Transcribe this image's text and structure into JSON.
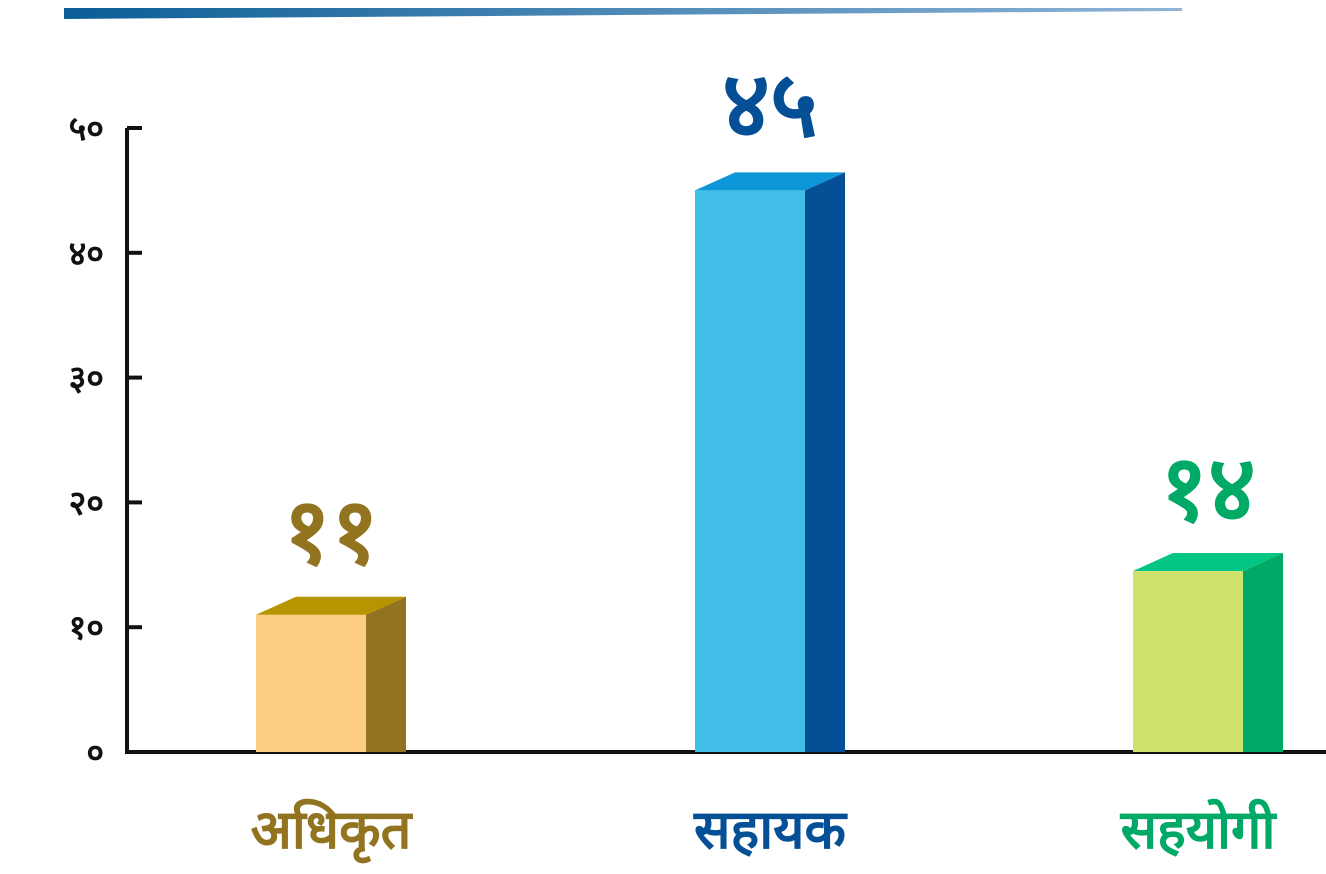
{
  "chart_data": {
    "type": "bar",
    "categories": [
      "अधिकृत",
      "सहायक",
      "सहयोगी"
    ],
    "values": [
      11,
      45,
      14.5
    ],
    "value_labels": [
      "११",
      "४५",
      "१४"
    ],
    "y_tick_labels": [
      "०",
      "१०",
      "२०",
      "३०",
      "४०",
      "५०"
    ],
    "y_ticks": [
      0,
      10,
      20,
      30,
      40,
      50
    ],
    "ylim": [
      0,
      50
    ],
    "title": "",
    "xlabel": "",
    "ylabel": "",
    "grid": false,
    "colors": {
      "header_rule_start": "#0b5e96",
      "header_rule_end": "#8fb4d6",
      "axis": "#111111",
      "bars": [
        {
          "front": "#fccd85",
          "side": "#927320",
          "top": "#b89400",
          "label": "#927320"
        },
        {
          "front": "#41bee8",
          "side": "#044f96",
          "top": "#0d96d8",
          "label": "#044f96"
        },
        {
          "front": "#cfe26c",
          "side": "#00a966",
          "top": "#03c684",
          "label": "#00a966"
        }
      ]
    }
  }
}
